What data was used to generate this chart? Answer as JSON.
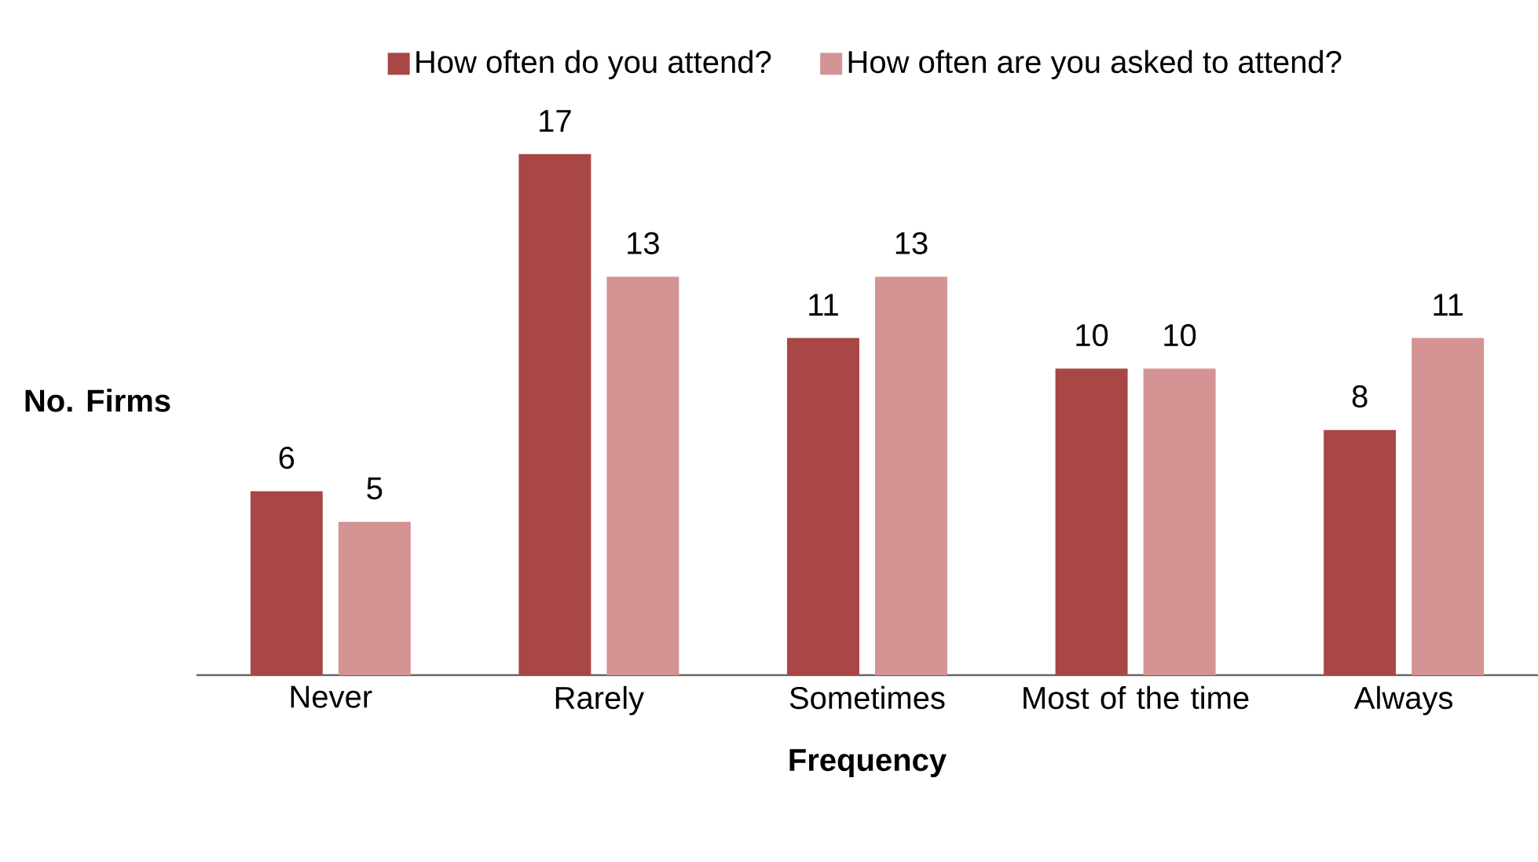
{
  "chart_data": {
    "type": "bar",
    "xlabel": "Frequency",
    "ylabel": "No. Firms",
    "categories": [
      "Never",
      "Rarely",
      "Sometimes",
      "Most of the time",
      "Always"
    ],
    "series": [
      {
        "name": "How often do you attend?",
        "color": "#a94646",
        "values": [
          6,
          17,
          11,
          10,
          8
        ]
      },
      {
        "name": "How often are you asked to attend?",
        "color": "#d49494",
        "values": [
          5,
          13,
          13,
          10,
          11
        ]
      }
    ],
    "data_labels": true,
    "legend": "top"
  }
}
